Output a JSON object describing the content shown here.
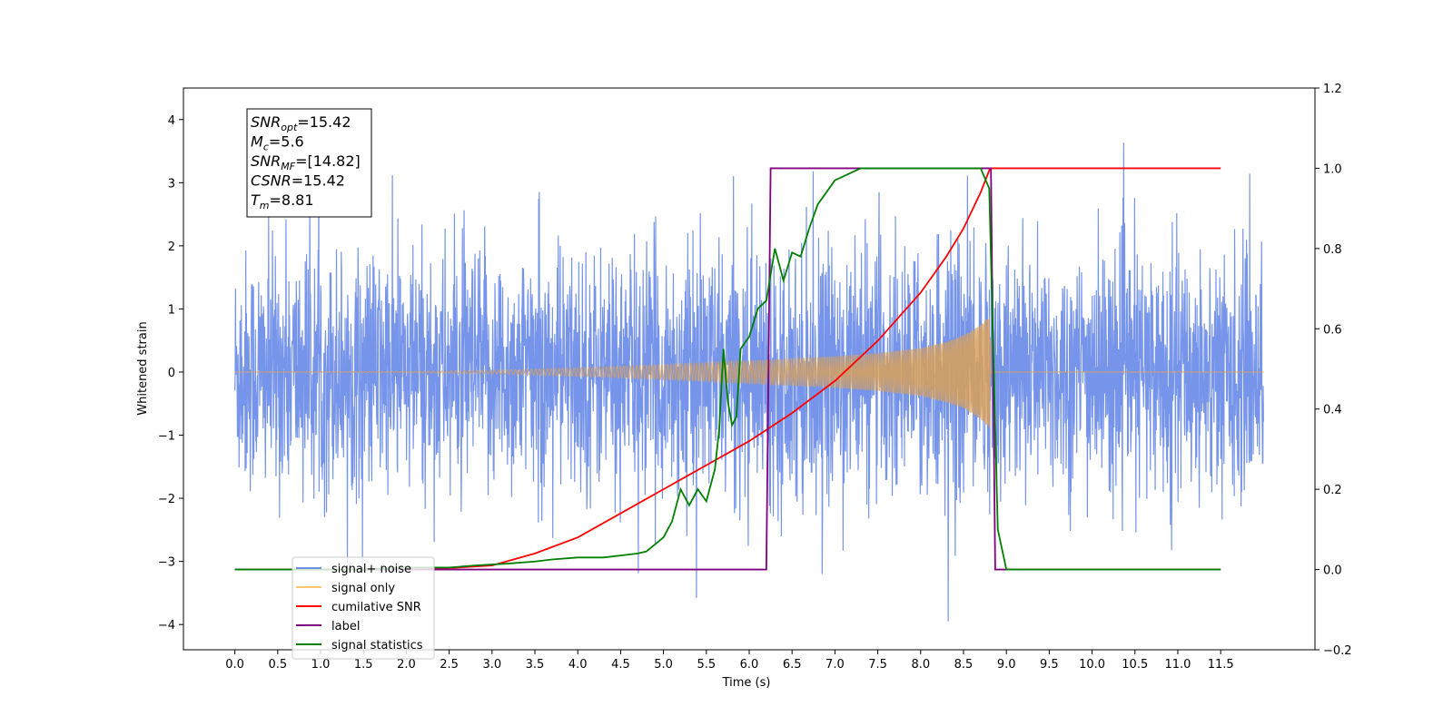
{
  "chart_data": {
    "type": "line",
    "title": "",
    "xlabel": "Time (s)",
    "ylabel": "Whitened strain",
    "y2label": "",
    "xlim": [
      -0.6,
      12.6
    ],
    "ylim": [
      -4.4,
      4.5
    ],
    "y2lim": [
      -0.2,
      1.2
    ],
    "xticks": [
      "0.0",
      "0.5",
      "1.0",
      "1.5",
      "2.0",
      "2.5",
      "3.0",
      "3.5",
      "4.0",
      "4.5",
      "5.0",
      "5.5",
      "6.0",
      "6.5",
      "7.0",
      "7.5",
      "8.0",
      "8.5",
      "9.0",
      "9.5",
      "10.0",
      "10.5",
      "11.0",
      "11.5"
    ],
    "yticks": [
      "4",
      "3",
      "2",
      "1",
      "0",
      "−1",
      "−2",
      "−3",
      "−4"
    ],
    "y2ticks": [
      "1.2",
      "1.0",
      "0.8",
      "0.6",
      "0.4",
      "0.2",
      "0.0",
      "−0.2"
    ],
    "grid": false,
    "legend_position": "lower-left",
    "annotation": {
      "lines": [
        {
          "main": "SNR",
          "sub": "opt",
          "rest": "=15.42"
        },
        {
          "main": "M",
          "sub": "c",
          "rest": "=5.6"
        },
        {
          "main": "SNR",
          "sub": "MF",
          "rest": "=[14.82]"
        },
        {
          "main": "CSNR",
          "sub": "",
          "rest": "=15.42"
        },
        {
          "main": "T",
          "sub": "m",
          "rest": "=8.81"
        }
      ]
    },
    "legend": [
      {
        "label": "signal+ noise",
        "color": "#6f8ee8"
      },
      {
        "label": "signal only",
        "color": "#ffc870"
      },
      {
        "label": "cumilative SNR",
        "color": "#ff0000"
      },
      {
        "label": "label",
        "color": "#800080"
      },
      {
        "label": "signal statistics",
        "color": "#008000"
      }
    ],
    "series": [
      {
        "name": "signal+ noise",
        "axis": "left",
        "color": "#6f8ee8",
        "description_range": {
          "x_start": 0.0,
          "x_end": 12.0,
          "noise_std": 0.95,
          "signal_end": 8.81
        }
      },
      {
        "name": "signal only",
        "axis": "left",
        "color": "#d9a15a",
        "envelope": {
          "x": [
            0.0,
            2.0,
            3.0,
            4.0,
            5.0,
            6.0,
            7.0,
            7.5,
            8.0,
            8.3,
            8.5,
            8.7,
            8.81,
            8.82,
            12.0
          ],
          "amp": [
            0.0,
            0.01,
            0.03,
            0.07,
            0.12,
            0.18,
            0.25,
            0.3,
            0.38,
            0.48,
            0.58,
            0.75,
            0.9,
            0.0,
            0.0
          ]
        }
      },
      {
        "name": "cumilative SNR",
        "axis": "right",
        "color": "#ff0000",
        "x": [
          2.2,
          3.0,
          3.5,
          4.0,
          4.5,
          5.0,
          5.5,
          6.0,
          6.5,
          7.0,
          7.5,
          8.0,
          8.3,
          8.5,
          8.7,
          8.81,
          8.85,
          11.5
        ],
        "values": [
          0.0,
          0.01,
          0.04,
          0.08,
          0.14,
          0.2,
          0.26,
          0.32,
          0.39,
          0.47,
          0.57,
          0.69,
          0.78,
          0.85,
          0.94,
          1.0,
          1.0,
          1.0
        ]
      },
      {
        "name": "label",
        "axis": "right",
        "color": "#800080",
        "x": [
          0.0,
          6.2,
          6.25,
          8.82,
          8.87,
          11.5
        ],
        "values": [
          0.0,
          0.0,
          1.0,
          1.0,
          0.0,
          0.0
        ]
      },
      {
        "name": "signal statistics",
        "axis": "right",
        "color": "#008000",
        "x": [
          0.0,
          1.5,
          2.0,
          2.5,
          2.8,
          3.2,
          3.5,
          3.7,
          4.0,
          4.3,
          4.5,
          4.7,
          4.8,
          5.0,
          5.1,
          5.2,
          5.3,
          5.4,
          5.5,
          5.6,
          5.65,
          5.7,
          5.75,
          5.8,
          5.85,
          5.9,
          6.0,
          6.1,
          6.2,
          6.3,
          6.4,
          6.5,
          6.6,
          6.7,
          6.8,
          7.0,
          7.3,
          8.0,
          8.7,
          8.8,
          8.9,
          9.0,
          11.5
        ],
        "values": [
          0.0,
          0.0,
          0.005,
          0.005,
          0.01,
          0.015,
          0.02,
          0.025,
          0.03,
          0.03,
          0.035,
          0.04,
          0.045,
          0.08,
          0.12,
          0.2,
          0.16,
          0.2,
          0.17,
          0.25,
          0.35,
          0.55,
          0.42,
          0.36,
          0.38,
          0.55,
          0.58,
          0.65,
          0.67,
          0.8,
          0.72,
          0.79,
          0.78,
          0.85,
          0.91,
          0.97,
          1.0,
          1.0,
          1.0,
          0.95,
          0.1,
          0.0,
          0.0
        ]
      }
    ]
  }
}
